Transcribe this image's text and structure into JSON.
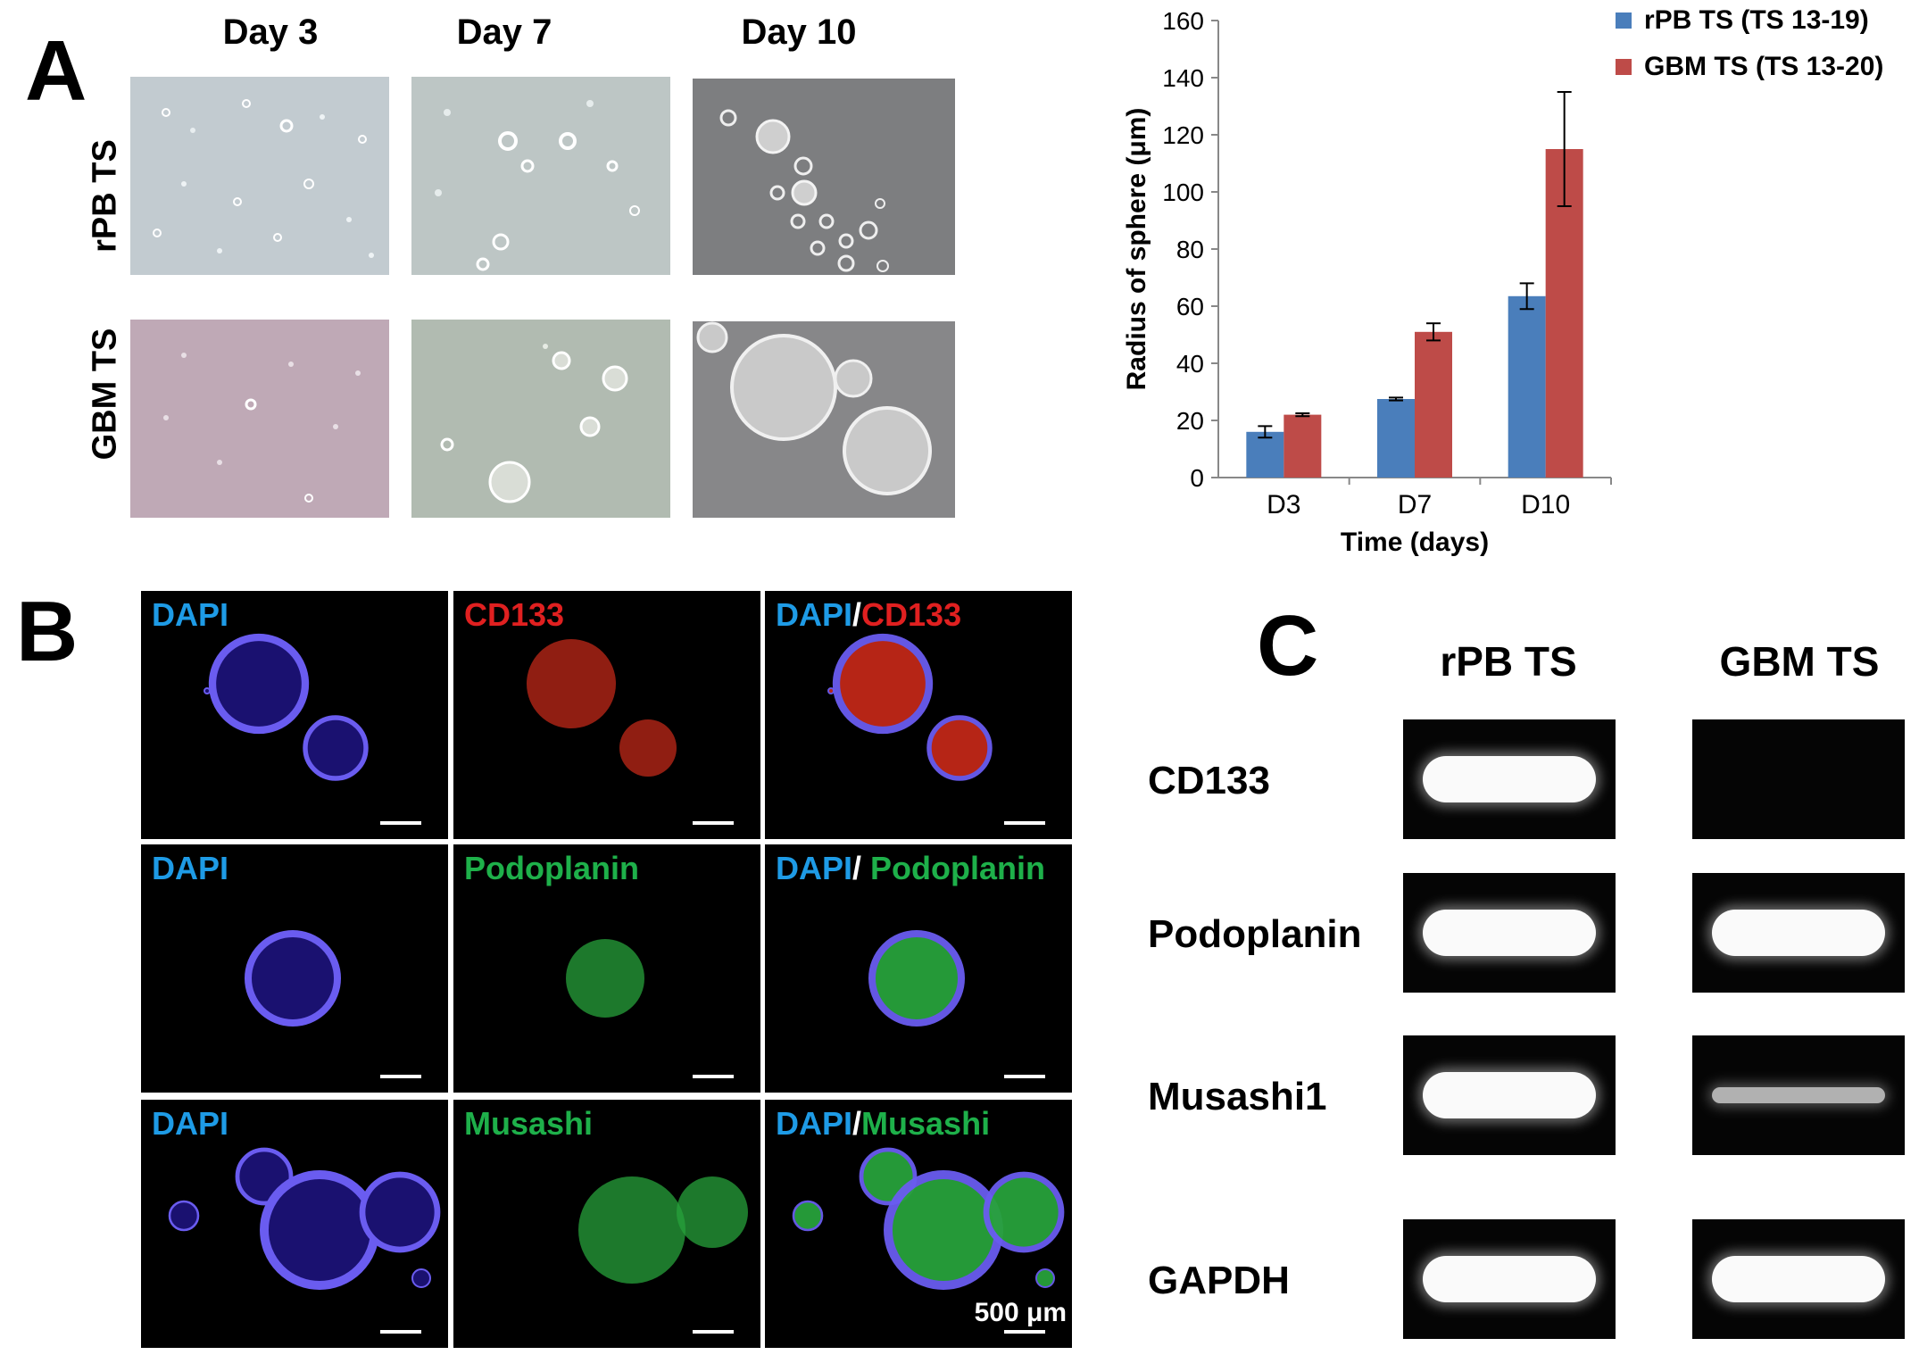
{
  "panels": {
    "a": "A",
    "b": "B",
    "c": "C"
  },
  "panel_a": {
    "days": [
      "Day 3",
      "Day 7",
      "Day 10"
    ],
    "rows": [
      "rPB TS",
      "GBM TS"
    ]
  },
  "chart_data": {
    "type": "bar",
    "categories": [
      "D3",
      "D7",
      "D10"
    ],
    "series": [
      {
        "name": "rPB TS (TS 13-19)",
        "color": "#4a7ebb",
        "values": [
          16,
          27.5,
          63.5
        ],
        "errors": [
          2,
          0.5,
          4.5
        ]
      },
      {
        "name": "GBM TS (TS 13-20)",
        "color": "#be4b48",
        "values": [
          22,
          51,
          115
        ],
        "errors": [
          0.5,
          3,
          20
        ]
      }
    ],
    "xlabel": "Time (days)",
    "ylabel": "Radius of sphere (μm)",
    "ylim": [
      0,
      160
    ],
    "yticks": [
      0,
      20,
      40,
      60,
      80,
      100,
      120,
      140,
      160
    ],
    "legend_position": "top-right",
    "grid": false
  },
  "panel_b": {
    "rows": [
      [
        {
          "parts": [
            {
              "text": "DAPI",
              "color": "#1e9be6"
            }
          ]
        },
        {
          "parts": [
            {
              "text": "CD133",
              "color": "#e02020"
            }
          ]
        },
        {
          "parts": [
            {
              "text": "DAPI",
              "color": "#1e9be6"
            },
            {
              "text": "/",
              "color": "#ffffff"
            },
            {
              "text": "CD133",
              "color": "#e02020"
            }
          ]
        }
      ],
      [
        {
          "parts": [
            {
              "text": "DAPI",
              "color": "#1e9be6"
            }
          ]
        },
        {
          "parts": [
            {
              "text": "Podoplanin",
              "color": "#1eb04a"
            }
          ]
        },
        {
          "parts": [
            {
              "text": "DAPI",
              "color": "#1e9be6"
            },
            {
              "text": "/ ",
              "color": "#ffffff"
            },
            {
              "text": "Podoplanin",
              "color": "#1eb04a"
            }
          ]
        }
      ],
      [
        {
          "parts": [
            {
              "text": "DAPI",
              "color": "#1e9be6"
            }
          ]
        },
        {
          "parts": [
            {
              "text": "Musashi",
              "color": "#1eb04a"
            }
          ]
        },
        {
          "parts": [
            {
              "text": "DAPI",
              "color": "#1e9be6"
            },
            {
              "text": "/",
              "color": "#ffffff"
            },
            {
              "text": "Musashi",
              "color": "#1eb04a"
            }
          ]
        }
      ]
    ],
    "scale_bar_label": "500 μm"
  },
  "panel_c": {
    "columns": [
      "rPB TS",
      "GBM TS"
    ],
    "genes": [
      "CD133",
      "Podoplanin",
      "Musashi1",
      "GAPDH"
    ],
    "band_intensity": [
      [
        1.0,
        0.0
      ],
      [
        1.0,
        1.0
      ],
      [
        1.0,
        0.35
      ],
      [
        1.0,
        1.0
      ]
    ]
  }
}
